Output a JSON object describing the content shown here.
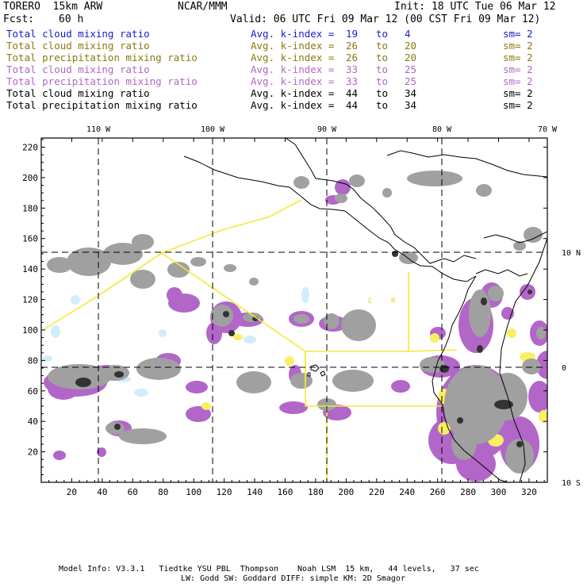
{
  "header": {
    "model": "TORERO  15km ARW",
    "org": "NCAR/MMM",
    "init": "Init: 18 UTC Tue 06 Mar 12",
    "fcst_label": "Fcst:",
    "fcst_value": "60 h",
    "valid": "Valid: 06 UTC Fri 09 Mar 12 (00 CST Fri 09 Mar 12)"
  },
  "legend": [
    {
      "field": "Total cloud mixing ratio",
      "kidx": "Avg. k-index =",
      "from": "19",
      "to_word": "to",
      "to": "4",
      "sm": "sm= 2",
      "color": "#1a1acc"
    },
    {
      "field": "Total cloud mixing ratio",
      "kidx": "Avg. k-index =",
      "from": "26",
      "to_word": "to",
      "to": "20",
      "sm": "sm= 2",
      "color": "#8a7a10"
    },
    {
      "field": "Total precipitation mixing ratio",
      "kidx": "Avg. k-index =",
      "from": "26",
      "to_word": "to",
      "to": "20",
      "sm": "sm= 2",
      "color": "#8a7a10"
    },
    {
      "field": "Total cloud mixing ratio",
      "kidx": "Avg. k-index =",
      "from": "33",
      "to_word": "to",
      "to": "25",
      "sm": "sm= 2",
      "color": "#b266c8"
    },
    {
      "field": "Total precipitation mixing ratio",
      "kidx": "Avg. k-index =",
      "from": "33",
      "to_word": "to",
      "to": "25",
      "sm": "sm= 2",
      "color": "#b266c8"
    },
    {
      "field": "Total cloud mixing ratio",
      "kidx": "Avg. k-index =",
      "from": "44",
      "to_word": "to",
      "to": "34",
      "sm": "sm= 2",
      "color": "#000000"
    },
    {
      "field": "Total precipitation mixing ratio",
      "kidx": "Avg. k-index =",
      "from": "44",
      "to_word": "to",
      "to": "34",
      "sm": "sm= 2",
      "color": "#000000"
    }
  ],
  "map": {
    "top_labels": [
      "110 W",
      "100 W",
      "90 W",
      "80 W",
      "70 W"
    ],
    "right_labels": [
      "10 N",
      "0",
      "10 S"
    ],
    "x_ticks": [
      "20",
      "40",
      "60",
      "80",
      "100",
      "120",
      "140",
      "160",
      "180",
      "200",
      "220",
      "240",
      "260",
      "280",
      "300",
      "320"
    ],
    "y_ticks": [
      "220",
      "200",
      "180",
      "160",
      "140",
      "120",
      "100",
      "80",
      "60",
      "40",
      "20"
    ],
    "region_letters": [
      "C",
      "R"
    ],
    "colors": {
      "cloud_light": "#cfeefb",
      "cloud_mid": "#b266c8",
      "precip_mid": "#f8ef62",
      "cloud_dense": "#9a9a9a",
      "core": "#333333",
      "domain": "#f5e83a"
    }
  },
  "footer": {
    "line1": "Model Info: V3.3.1   Tiedtke YSU PBL  Thompson    Noah LSM  15 km,   44 levels,   37 sec",
    "line2": "LW: Godd SW: Goddard DIFF: simple KM: 2D Smagor"
  }
}
